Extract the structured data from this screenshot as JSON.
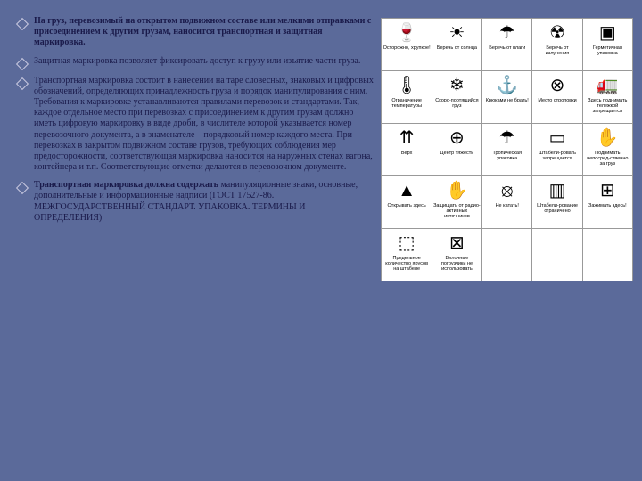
{
  "bullets": [
    {
      "bold": true,
      "text": "На груз, перевозимый на открытом подвижном составе или мелкими отправками с присоединением к другим грузам, наносится транспортная и защитная маркировка."
    },
    {
      "bold": false,
      "text": "Защитная маркировка позволяет фиксировать доступ к грузу или изъятие части груза."
    },
    {
      "bold": false,
      "text": "Транспортная маркировка состоит в нанесении на таре словесных, знаковых и цифровых обозначений, определяющих принадлежность груза и порядок манипулирования с ним. Требования к маркировке устанавливаются правилами перевозок и стандартами. Так, каждое отдельное место при перевозках с присоединением к другим грузам должно иметь цифровую маркировку в виде дроби, в числителе которой указывается номер перевозочного документа, а в знаменателе – порядковый номер каждого места. При перевозках в закрытом подвижном составе грузов, требующих соблюдения мер предосторожности, соответствующая маркировка наносится на наружных стенах вагона, контейнера и т.п. Соответствующие отметки делаются в перевозочном документе."
    },
    {
      "bold": false,
      "boldPrefix": "Транспортная маркировка должна содержать",
      "text": " манипуляционные знаки, основные, дополнительные и информационные надписи (ГОСТ 17527-86. МЕЖГОСУДАРСТВЕННЫЙ СТАНДАРТ. УПАКОВКА. ТЕРМИНЫ И ОПРЕДЕЛЕНИЯ)"
    }
  ],
  "signs": [
    {
      "icon": "🍷",
      "label": "Осторожно, хрупкое!"
    },
    {
      "icon": "☀",
      "label": "Беречь от солнца"
    },
    {
      "icon": "☂",
      "label": "Беречь от влаги"
    },
    {
      "icon": "☢",
      "label": "Беречь от излучения"
    },
    {
      "icon": "▣",
      "label": "Герметичная упаковка"
    },
    {
      "icon": "🌡",
      "label": "Ограничение температуры"
    },
    {
      "icon": "❄",
      "label": "Скоро-портящийся груз"
    },
    {
      "icon": "⚓",
      "label": "Крюками не брать!"
    },
    {
      "icon": "⊗",
      "label": "Место строповки"
    },
    {
      "icon": "🚛",
      "label": "Здесь поднимать тележкой запрещается"
    },
    {
      "icon": "⇈",
      "label": "Верх"
    },
    {
      "icon": "⊕",
      "label": "Центр тяжести"
    },
    {
      "icon": "☂",
      "label": "Тропическая упаковка"
    },
    {
      "icon": "▭",
      "label": "Штабели-ровать запрещается"
    },
    {
      "icon": "✋",
      "label": "Поднимать непосред-ственно за груз"
    },
    {
      "icon": "▲",
      "label": "Открывать здесь"
    },
    {
      "icon": "✋",
      "label": "Защищать от радио-активных источников"
    },
    {
      "icon": "⦻",
      "label": "Не катать!"
    },
    {
      "icon": "▥",
      "label": "Штабели-рование ограничено"
    },
    {
      "icon": "⊞",
      "label": "Зажимать здесь!"
    },
    {
      "icon": "⬚",
      "label": "Предельное количество ярусов на штабеле"
    },
    {
      "icon": "⊠",
      "label": "Вилочные погрузчики не использовать"
    },
    {
      "icon": " ",
      "label": " "
    },
    {
      "icon": " ",
      "label": " "
    },
    {
      "icon": " ",
      "label": " "
    }
  ],
  "colors": {
    "bg": "#5b6a9a",
    "text": "#1a1a4a"
  }
}
